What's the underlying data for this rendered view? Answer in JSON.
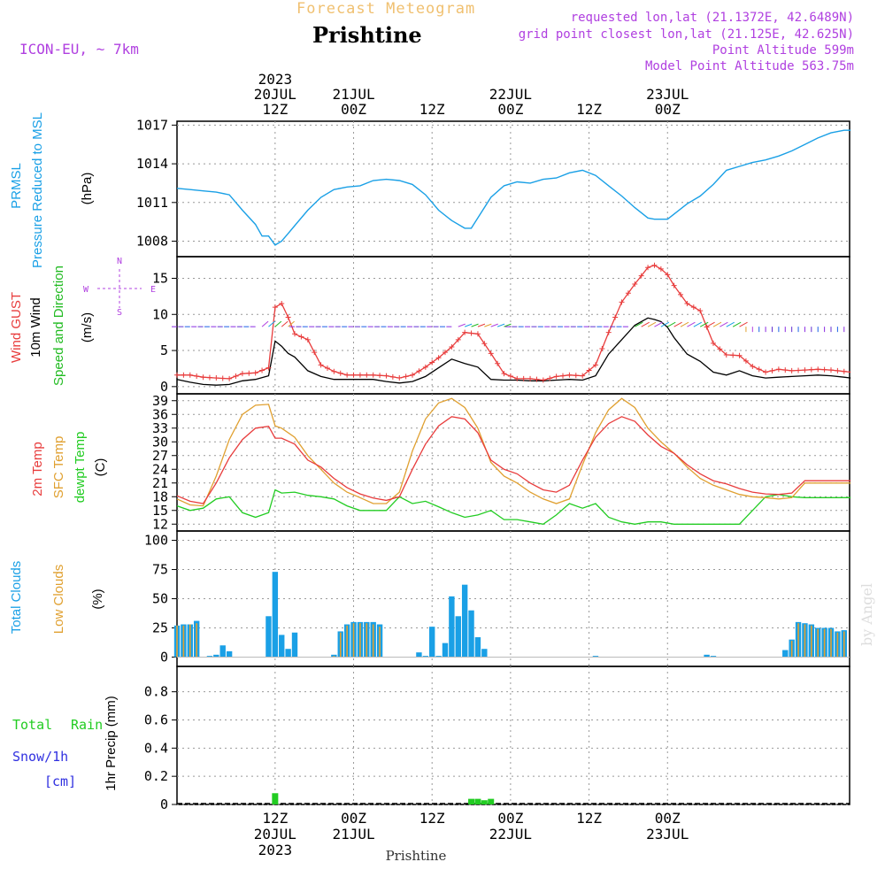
{
  "header": {
    "product": "Forecast Meteogram",
    "location": "Prishtine",
    "model": "ICON-EU, ~ 7km",
    "requested": "requested lon,lat (21.1372E, 42.6489N)",
    "gridpoint": "grid point closest lon,lat (21.125E, 42.625N)",
    "point_altitude": "Point Altitude 599m",
    "model_altitude": "Model Point Altitude 563.75m",
    "footer_location": "Prishtine",
    "watermark": "by Angel"
  },
  "colors": {
    "pressure": "#1aa0e6",
    "gust": "#e83c3c",
    "wind": "#000000",
    "dir": "#22bb22",
    "temp": "#e83c3c",
    "sfc": "#e0a030",
    "dewpt": "#22cc22",
    "total_cloud": "#1aa0e6",
    "low_cloud": "#e0a030",
    "rain": "#22cc22",
    "snow": "#3030e0",
    "purple": "#b040e0",
    "header_gold": "#f0c070"
  },
  "time_axis": {
    "top_labels": [
      {
        "lines": [
          "2023",
          "20JUL",
          "12Z"
        ]
      },
      {
        "lines": [
          "21JUL",
          "00Z"
        ]
      },
      {
        "lines": [
          "12Z"
        ]
      },
      {
        "lines": [
          "22JUL",
          "00Z"
        ]
      },
      {
        "lines": [
          "12Z"
        ]
      },
      {
        "lines": [
          "23JUL",
          "00Z"
        ]
      }
    ],
    "bottom_labels": [
      {
        "lines": [
          "12Z",
          "20JUL",
          "2023"
        ]
      },
      {
        "lines": [
          "00Z",
          "21JUL"
        ]
      },
      {
        "lines": [
          "12Z"
        ]
      },
      {
        "lines": [
          "00Z",
          "22JUL"
        ]
      },
      {
        "lines": [
          "12Z"
        ]
      },
      {
        "lines": [
          "00Z",
          "23JUL"
        ]
      }
    ]
  },
  "panels": {
    "pressure": {
      "label1": "PRMSL",
      "label2": "Pressure Reduced to MSL",
      "unit": "(hPa)"
    },
    "wind": {
      "label_gust": "Wind GUST",
      "label_wind": "10m Wind",
      "label_dir": "Speed and Direction",
      "unit": "(m/s)",
      "compass_n": "N",
      "compass_s": "S",
      "compass_e": "E",
      "compass_w": "W"
    },
    "temp": {
      "label_t2m": "2m Temp",
      "label_sfc": "SFC Temp",
      "label_dew": "dewpt Temp",
      "unit": "(C)"
    },
    "cloud": {
      "label_total": "Total Clouds",
      "label_low": "Low Clouds",
      "unit": "(%)"
    },
    "precip": {
      "label_rain1": "Total",
      "label_rain2": "Rain",
      "label_snow": "Snow/1h",
      "label_cm": "[cm]",
      "label_axis": "1hr Precip (mm)"
    }
  },
  "chart_data": [
    {
      "type": "line",
      "title": "PRMSL Pressure Reduced to MSL",
      "ylabel": "(hPa)",
      "x_hours": [
        0,
        2,
        4,
        6,
        8,
        10,
        12,
        13,
        14,
        15,
        16,
        17,
        18,
        20,
        22,
        24,
        26,
        28,
        30,
        32,
        34,
        36,
        38,
        40,
        42,
        44,
        45,
        46,
        48,
        50,
        52,
        54,
        56,
        58,
        60,
        62,
        64,
        66,
        68,
        70,
        72,
        73,
        74,
        75,
        76,
        78,
        80,
        82,
        84,
        86,
        88,
        90,
        92,
        94,
        96,
        98,
        100,
        102,
        103
      ],
      "values": [
        1012.1,
        1012.0,
        1011.9,
        1011.8,
        1011.6,
        1010.4,
        1009.3,
        1008.4,
        1008.4,
        1007.7,
        1008.0,
        1008.6,
        1009.2,
        1010.4,
        1011.4,
        1012.0,
        1012.2,
        1012.3,
        1012.7,
        1012.8,
        1012.7,
        1012.4,
        1011.6,
        1010.4,
        1009.6,
        1009.0,
        1009.0,
        1009.8,
        1011.4,
        1012.3,
        1012.6,
        1012.5,
        1012.8,
        1012.9,
        1013.3,
        1013.5,
        1013.1,
        1012.3,
        1011.5,
        1010.6,
        1009.8,
        1009.7,
        1009.7,
        1009.7,
        1010.1,
        1010.9,
        1011.5,
        1012.4,
        1013.5,
        1013.8,
        1014.1,
        1014.3,
        1014.6,
        1015.0,
        1015.5,
        1016.0,
        1016.4,
        1016.6,
        1016.6
      ],
      "yticks": [
        1008,
        1011,
        1014,
        1017
      ],
      "ylim": [
        1006.8,
        1017.3
      ]
    },
    {
      "type": "line",
      "title": "Wind GUST / 10m Wind Speed and Direction",
      "ylabel": "(m/s)",
      "x_hours": [
        0,
        2,
        4,
        6,
        8,
        10,
        12,
        14,
        15,
        16,
        17,
        18,
        20,
        22,
        24,
        26,
        28,
        30,
        32,
        34,
        36,
        38,
        40,
        42,
        44,
        46,
        48,
        50,
        52,
        54,
        56,
        58,
        60,
        62,
        64,
        66,
        68,
        70,
        72,
        73,
        74,
        75,
        76,
        78,
        80,
        82,
        84,
        86,
        88,
        90,
        92,
        94,
        96,
        98,
        100,
        102,
        103
      ],
      "series": [
        {
          "name": "Wind GUST",
          "values": [
            1.6,
            1.6,
            1.3,
            1.2,
            1.1,
            1.8,
            1.9,
            2.6,
            11.0,
            11.5,
            9.6,
            7.3,
            6.5,
            3.0,
            2.1,
            1.6,
            1.6,
            1.6,
            1.5,
            1.2,
            1.6,
            2.7,
            4.0,
            5.5,
            7.5,
            7.3,
            4.6,
            1.8,
            1.1,
            1.1,
            0.9,
            1.4,
            1.6,
            1.5,
            3.0,
            7.5,
            11.7,
            14.2,
            16.5,
            16.8,
            16.3,
            15.5,
            14.0,
            11.5,
            10.5,
            6.0,
            4.4,
            4.3,
            2.8,
            2.0,
            2.4,
            2.2,
            2.3,
            2.4,
            2.3,
            2.1,
            2.0
          ]
        },
        {
          "name": "10m Wind",
          "values": [
            1.0,
            0.6,
            0.3,
            0.2,
            0.3,
            0.8,
            1.0,
            1.5,
            6.3,
            5.6,
            4.6,
            4.1,
            2.2,
            1.4,
            1.0,
            1.0,
            1.0,
            1.0,
            0.7,
            0.5,
            0.7,
            1.4,
            2.6,
            3.8,
            3.2,
            2.7,
            1.0,
            0.9,
            0.9,
            0.8,
            0.8,
            0.9,
            1.0,
            0.9,
            1.5,
            4.5,
            6.5,
            8.5,
            9.5,
            9.3,
            9.0,
            8.2,
            6.8,
            4.5,
            3.5,
            2.0,
            1.6,
            2.2,
            1.5,
            1.2,
            1.3,
            1.4,
            1.5,
            1.6,
            1.5,
            1.3,
            1.2
          ]
        }
      ],
      "yticks": [
        0,
        5,
        10,
        15
      ],
      "ylim": [
        -1,
        18
      ]
    },
    {
      "type": "line",
      "title": "2m Temp / SFC Temp / dewpt Temp",
      "ylabel": "(C)",
      "x_hours": [
        0,
        2,
        4,
        6,
        8,
        10,
        12,
        14,
        15,
        16,
        18,
        20,
        22,
        24,
        26,
        28,
        30,
        32,
        34,
        36,
        38,
        40,
        42,
        44,
        46,
        48,
        50,
        52,
        54,
        56,
        58,
        60,
        62,
        64,
        66,
        68,
        70,
        72,
        74,
        76,
        78,
        80,
        82,
        84,
        86,
        88,
        90,
        92,
        94,
        96,
        98,
        100,
        102,
        103
      ],
      "series": [
        {
          "name": "2m Temp",
          "values": [
            18.2,
            17.0,
            16.5,
            21.0,
            26.5,
            30.5,
            33.0,
            33.4,
            30.8,
            30.8,
            29.5,
            26.0,
            24.5,
            22.0,
            20.0,
            18.6,
            17.7,
            17.2,
            18.0,
            24.0,
            29.5,
            33.5,
            35.5,
            35.0,
            32.0,
            26.0,
            24.0,
            23.0,
            21.0,
            19.5,
            19.0,
            20.5,
            26.0,
            31.0,
            34.0,
            35.5,
            34.5,
            31.5,
            29.0,
            27.5,
            25.0,
            23.0,
            21.5,
            20.8,
            19.8,
            19.0,
            18.6,
            18.5,
            18.8,
            21.5,
            21.5,
            21.5,
            21.5,
            21.5
          ]
        },
        {
          "name": "SFC Temp",
          "values": [
            17.5,
            16.2,
            16.0,
            22.5,
            30.5,
            36.0,
            38.0,
            38.2,
            33.5,
            33.0,
            31.0,
            27.0,
            24.0,
            21.0,
            19.0,
            17.8,
            16.5,
            16.5,
            19.0,
            28.0,
            35.0,
            38.5,
            39.5,
            37.5,
            33.0,
            25.5,
            22.5,
            21.0,
            19.0,
            17.5,
            16.5,
            17.5,
            25.0,
            32.0,
            37.0,
            39.5,
            37.5,
            33.0,
            30.0,
            27.5,
            24.5,
            22.0,
            20.5,
            19.5,
            18.5,
            18.0,
            17.8,
            17.5,
            17.8,
            21.0,
            21.0,
            21.0,
            21.0,
            21.0
          ]
        },
        {
          "name": "dewpt Temp",
          "values": [
            16.0,
            15.0,
            15.5,
            17.5,
            18.0,
            14.5,
            13.5,
            14.5,
            19.5,
            18.8,
            19.0,
            18.3,
            18.0,
            17.5,
            16.0,
            15.0,
            15.0,
            15.0,
            18.0,
            16.5,
            17.0,
            15.8,
            14.5,
            13.5,
            14.0,
            15.0,
            13.0,
            13.0,
            12.5,
            12.0,
            14.0,
            16.5,
            15.5,
            16.5,
            13.5,
            12.5,
            12.0,
            12.5,
            12.5,
            12.0,
            12.0,
            12.0,
            12.0,
            12.0,
            12.0,
            15.0,
            18.0,
            18.5,
            18.0,
            17.8,
            17.8,
            17.8,
            17.8,
            17.8
          ]
        }
      ],
      "yticks": [
        12,
        15,
        18,
        21,
        24,
        27,
        30,
        33,
        36,
        39
      ],
      "ylim": [
        10.5,
        40.5
      ]
    },
    {
      "type": "bar",
      "title": "Total Clouds / Low Clouds",
      "ylabel": "(%)",
      "x_hours": [
        0,
        1,
        2,
        3,
        4,
        5,
        6,
        7,
        8,
        9,
        10,
        11,
        12,
        13,
        14,
        15,
        16,
        17,
        18,
        19,
        20,
        21,
        22,
        23,
        24,
        25,
        26,
        27,
        28,
        29,
        30,
        31,
        32,
        33,
        34,
        35,
        36,
        37,
        38,
        39,
        40,
        41,
        42,
        43,
        44,
        45,
        46,
        47,
        48,
        49,
        50,
        51,
        52,
        53,
        54,
        55,
        56,
        57,
        58,
        59,
        60,
        61,
        62,
        63,
        64,
        65,
        66,
        67,
        68,
        69,
        70,
        71,
        72,
        73,
        74,
        75,
        76,
        77,
        78,
        79,
        80,
        81,
        82,
        83,
        84,
        85,
        86,
        87,
        88,
        89,
        90,
        91,
        92,
        93,
        94,
        95,
        96,
        97,
        98,
        99,
        100,
        101,
        102
      ],
      "series": [
        {
          "name": "Total Clouds",
          "values": [
            27,
            28,
            28,
            31,
            0,
            1,
            2,
            10,
            5,
            0,
            0,
            0,
            0,
            0,
            35,
            73,
            19,
            7,
            21,
            0,
            0,
            0,
            0,
            0,
            2,
            22,
            28,
            30,
            30,
            30,
            30,
            28,
            0,
            0,
            0,
            0,
            0,
            4,
            1,
            26,
            1,
            12,
            52,
            35,
            62,
            40,
            17,
            7,
            0,
            0,
            0,
            0,
            0,
            0,
            0,
            0,
            0,
            0,
            0,
            0,
            0,
            0,
            0,
            0,
            1,
            0,
            0,
            0,
            0,
            0,
            0,
            0,
            0,
            0,
            0,
            0,
            0,
            0,
            0,
            0,
            0,
            2,
            1,
            0,
            0,
            0,
            0,
            0,
            0,
            0,
            0,
            0,
            0,
            6,
            15,
            30,
            29,
            28,
            25,
            25,
            25,
            22,
            23
          ]
        },
        {
          "name": "Low Clouds",
          "values": [
            27,
            27,
            28,
            29,
            0,
            0,
            0,
            0,
            0,
            0,
            0,
            0,
            0,
            0,
            0,
            0,
            0,
            0,
            0,
            0,
            0,
            0,
            0,
            0,
            1,
            21,
            27,
            29,
            29,
            29,
            28,
            26,
            0,
            0,
            0,
            0,
            0,
            0,
            0,
            0,
            0,
            0,
            0,
            0,
            0,
            0,
            0,
            0,
            0,
            0,
            0,
            0,
            0,
            0,
            0,
            0,
            0,
            0,
            0,
            0,
            0,
            0,
            0,
            0,
            0,
            0,
            0,
            0,
            0,
            0,
            0,
            0,
            0,
            0,
            0,
            0,
            0,
            0,
            0,
            0,
            0,
            0,
            0,
            0,
            0,
            0,
            0,
            0,
            0,
            0,
            0,
            0,
            0,
            0,
            14,
            29,
            28,
            27,
            24,
            24,
            24,
            21,
            22
          ]
        }
      ],
      "yticks": [
        0,
        25,
        50,
        75,
        100
      ],
      "ylim": [
        -8,
        108
      ]
    },
    {
      "type": "bar",
      "title": "Total Rain / Snow/1h",
      "ylabel": "1hr Precip (mm)",
      "x_hours": [
        15,
        45,
        46,
        47,
        48
      ],
      "series": [
        {
          "name": "Rain",
          "values": [
            0.08,
            0.04,
            0.04,
            0.03,
            0.04
          ]
        }
      ],
      "yticks": [
        0,
        0.2,
        0.4,
        0.6,
        0.8
      ],
      "ylim": [
        0,
        0.98
      ]
    }
  ]
}
